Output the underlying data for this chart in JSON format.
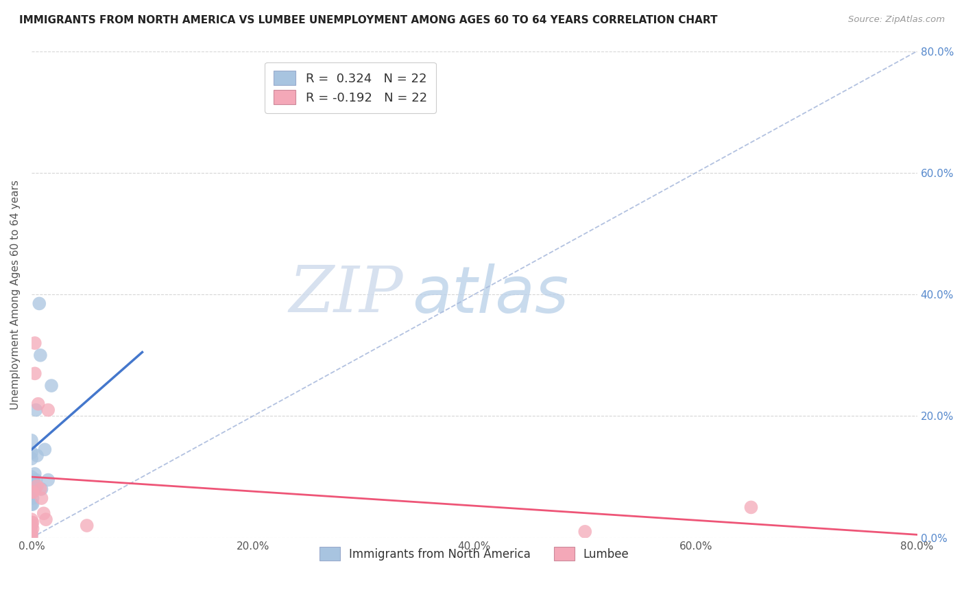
{
  "title": "IMMIGRANTS FROM NORTH AMERICA VS LUMBEE UNEMPLOYMENT AMONG AGES 60 TO 64 YEARS CORRELATION CHART",
  "source": "Source: ZipAtlas.com",
  "ylabel": "Unemployment Among Ages 60 to 64 years",
  "legend_blue_r": "R =  0.324",
  "legend_blue_n": "N = 22",
  "legend_pink_r": "R = -0.192",
  "legend_pink_n": "N = 22",
  "legend_label_blue": "Immigrants from North America",
  "legend_label_pink": "Lumbee",
  "blue_color": "#a8c4e0",
  "pink_color": "#f4a8b8",
  "blue_line_color": "#4477cc",
  "pink_line_color": "#ee5577",
  "watermark_zip": "ZIP",
  "watermark_atlas": "atlas",
  "diag_line_color": "#aabbdd",
  "grid_color": "#cccccc",
  "background_color": "#ffffff",
  "right_axis_color": "#5588cc",
  "blue_scatter_x": [
    0.005,
    0.008,
    0.012,
    0.015,
    0.018,
    0.007,
    0.004,
    0.003,
    0.003,
    0.002,
    0.001,
    0.001,
    0.001,
    0.0,
    0.0,
    0.0,
    0.0,
    0.0,
    0.0,
    0.0,
    0.004,
    0.009
  ],
  "blue_scatter_y": [
    0.135,
    0.3,
    0.145,
    0.095,
    0.25,
    0.385,
    0.21,
    0.105,
    0.08,
    0.095,
    0.075,
    0.065,
    0.055,
    0.14,
    0.16,
    0.13,
    0.1,
    0.055,
    0.02,
    0.005,
    0.095,
    0.08
  ],
  "pink_scatter_x": [
    0.003,
    0.003,
    0.005,
    0.006,
    0.008,
    0.001,
    0.001,
    0.001,
    0.001,
    0.0,
    0.0,
    0.0,
    0.0,
    0.0,
    0.0,
    0.009,
    0.011,
    0.013,
    0.05,
    0.5,
    0.65,
    0.015
  ],
  "pink_scatter_y": [
    0.32,
    0.27,
    0.085,
    0.22,
    0.08,
    0.075,
    0.075,
    0.025,
    0.015,
    0.03,
    0.025,
    0.02,
    0.01,
    0.005,
    0.0,
    0.065,
    0.04,
    0.03,
    0.02,
    0.01,
    0.05,
    0.21
  ],
  "blue_line_x0": 0.0,
  "blue_line_x1": 0.1,
  "blue_line_y0": 0.145,
  "blue_line_y1": 0.305,
  "pink_line_x0": 0.0,
  "pink_line_x1": 0.8,
  "pink_line_y0": 0.1,
  "pink_line_y1": 0.005,
  "diag_line_x0": 0.0,
  "diag_line_x1": 0.8,
  "diag_line_y0": 0.0,
  "diag_line_y1": 0.8,
  "xlim": [
    0.0,
    0.8
  ],
  "ylim": [
    0.0,
    0.8
  ],
  "xticks": [
    0.0,
    0.2,
    0.4,
    0.6,
    0.8
  ],
  "yticks": [
    0.0,
    0.2,
    0.4,
    0.6,
    0.8
  ]
}
